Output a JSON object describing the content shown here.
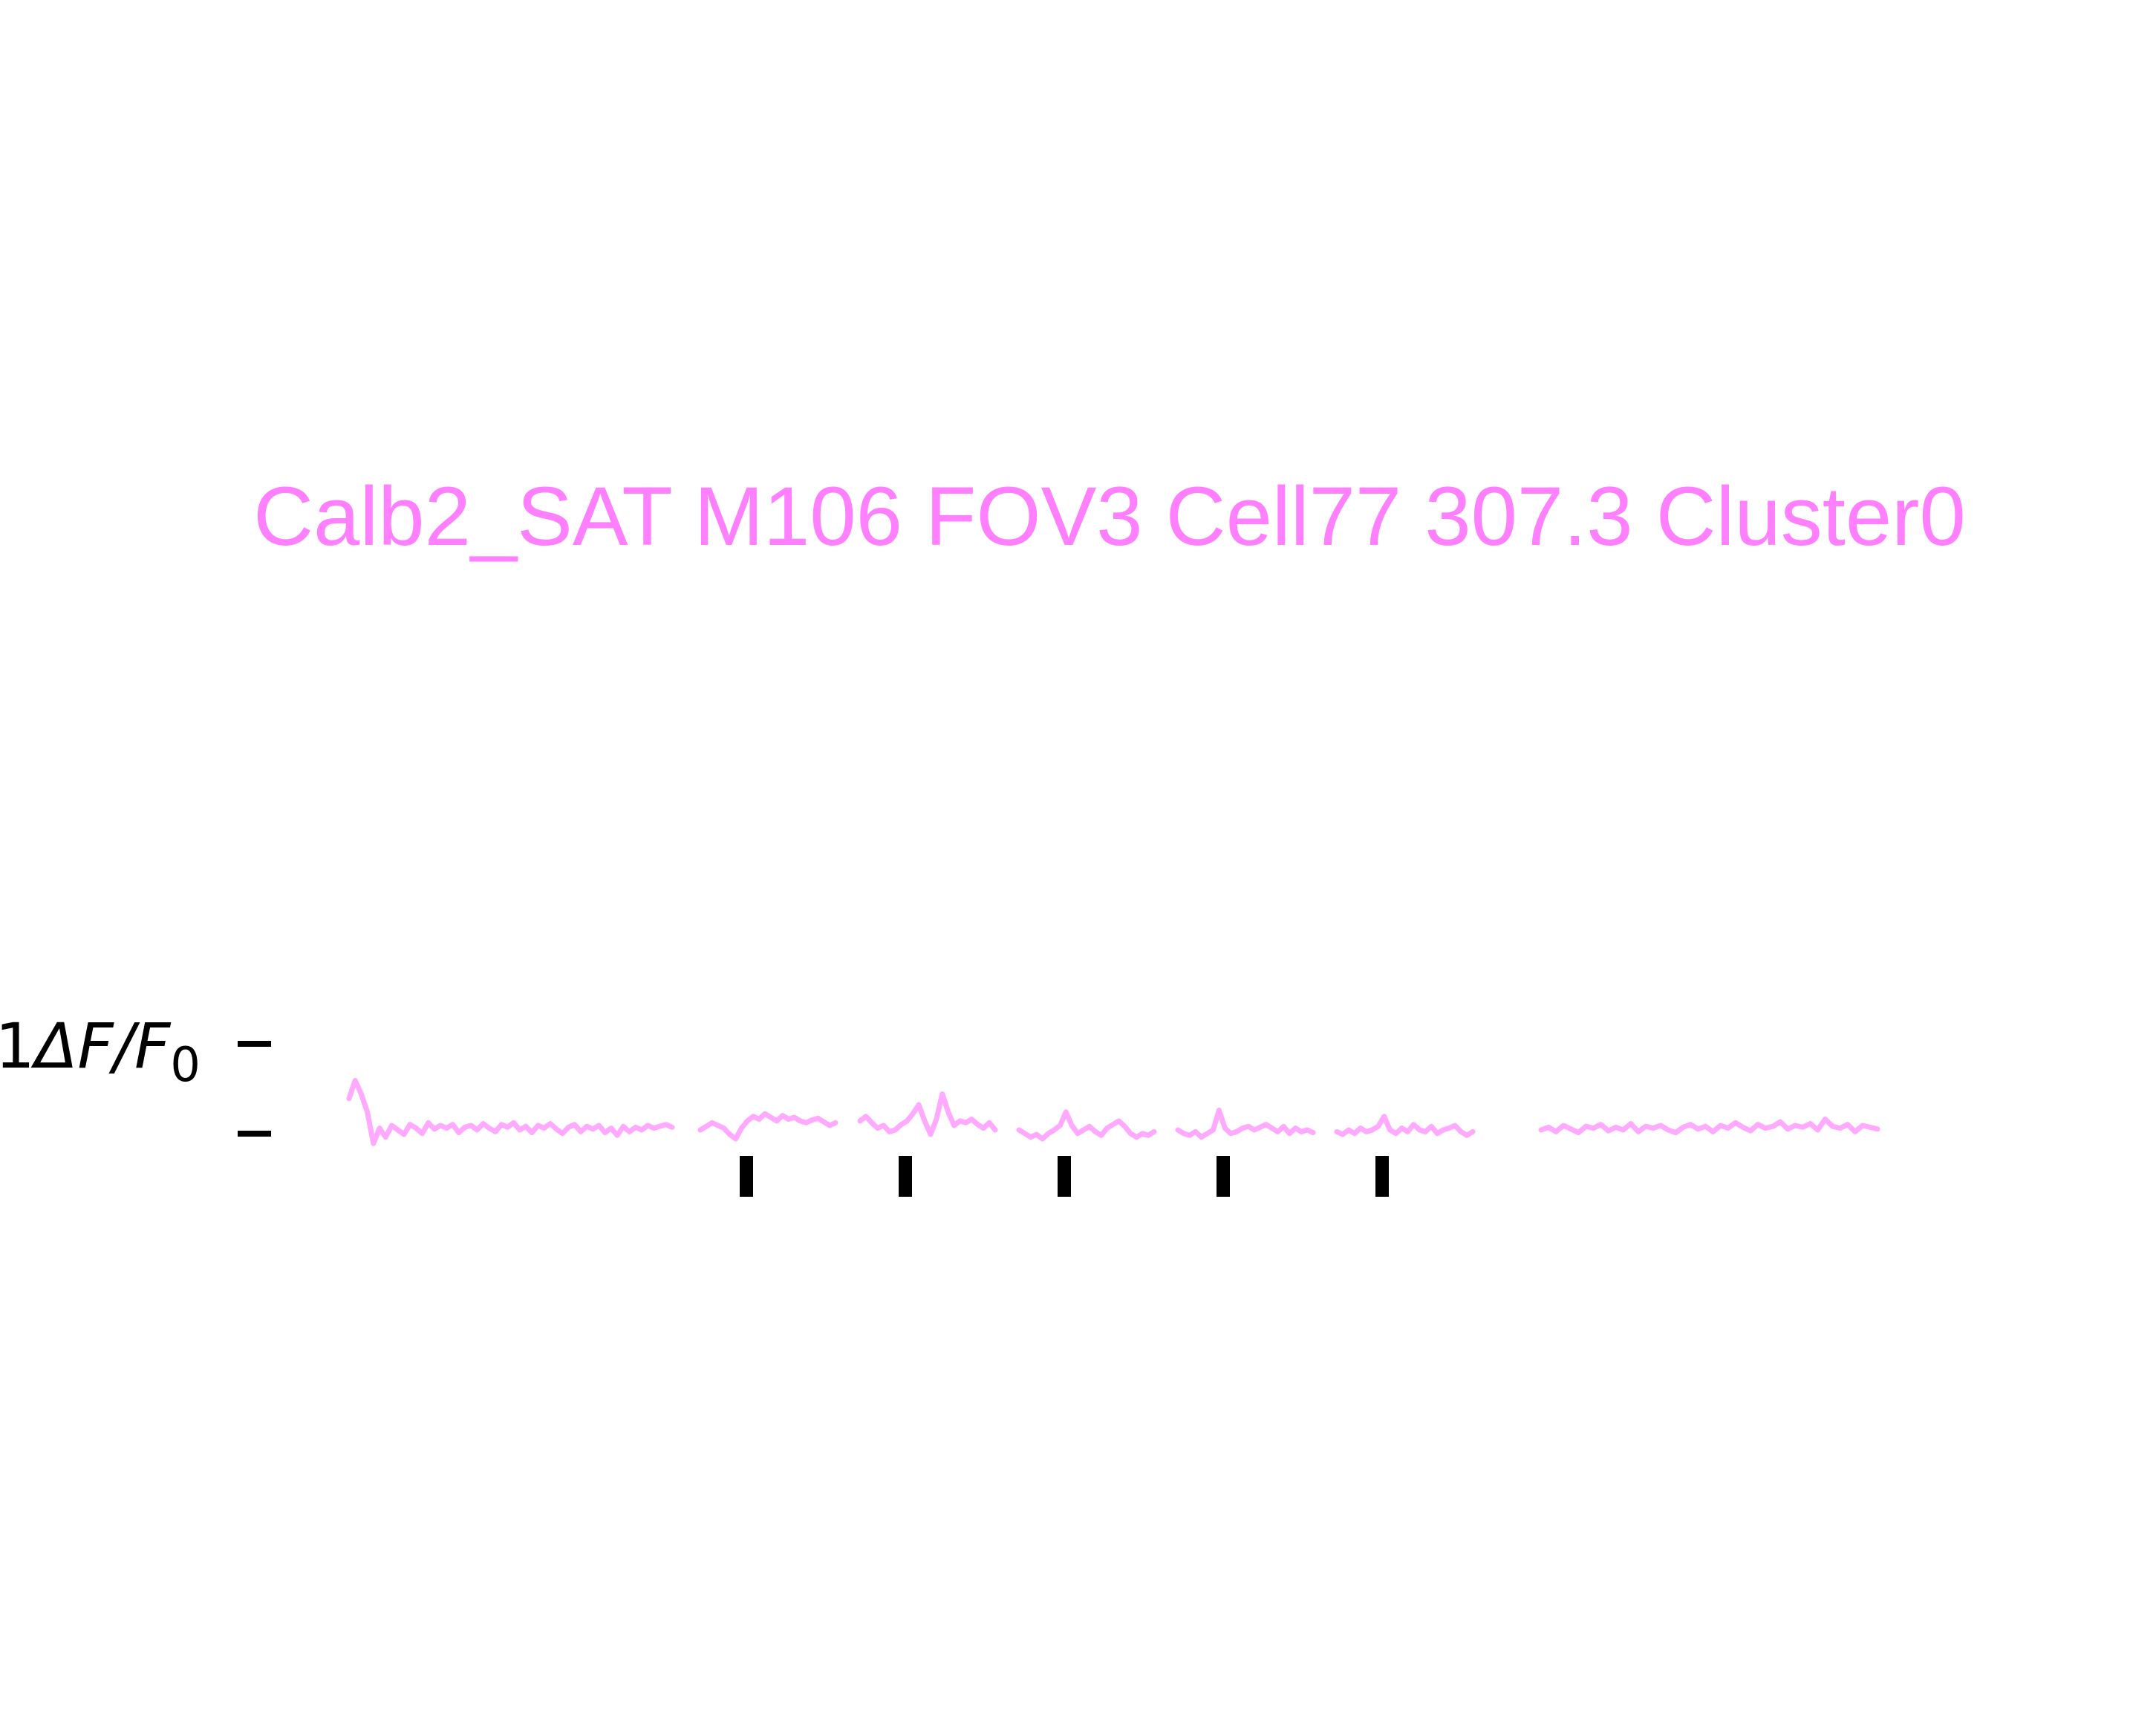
{
  "colors": {
    "title": "#ff80ff",
    "trace": "#ffaaff",
    "scale_bar": "#000000",
    "stim_marker": "#000000"
  },
  "chart_data": {
    "type": "line",
    "title": "Calb2_SAT M106 FOV3 Cell77 307.3 Cluster0",
    "xlabel": "",
    "ylabel": "",
    "axes_visible": false,
    "grid": false,
    "scale_bar": {
      "label_prefix": "1",
      "label_main": "ΔF/F",
      "label_subscript": "0",
      "value": 1
    },
    "stimulus_markers": 5,
    "series": [
      {
        "segment": 1,
        "values": [
          0.35,
          0.55,
          0.4,
          0.2,
          -0.15,
          0.02,
          -0.08,
          0.05,
          0.0,
          -0.05,
          0.06,
          0.02,
          -0.04,
          0.08,
          0.01,
          0.05,
          0.02,
          0.06,
          -0.03,
          0.03,
          0.05,
          0.0,
          0.07,
          0.02,
          -0.02,
          0.06,
          0.03,
          0.08,
          0.0,
          0.04,
          -0.03,
          0.05,
          0.02,
          0.07,
          0.01,
          -0.04,
          0.03,
          0.06,
          -0.02,
          0.04,
          0.01,
          0.05,
          -0.03,
          0.02,
          -0.06,
          0.04,
          -0.02,
          0.03,
          0.0,
          0.05,
          0.02,
          0.04,
          0.06,
          0.03
        ]
      },
      {
        "segment": 2,
        "values": [
          0.0,
          0.04,
          0.08,
          0.05,
          0.02,
          -0.05,
          -0.1,
          0.02,
          0.1,
          0.15,
          0.12,
          0.18,
          0.14,
          0.1,
          0.16,
          0.12,
          0.14,
          0.1,
          0.08,
          0.11,
          0.13,
          0.09,
          0.05,
          0.08
        ]
      },
      {
        "segment": 3,
        "values": [
          0.1,
          0.15,
          0.08,
          0.02,
          0.05,
          -0.02,
          0.0,
          0.06,
          0.1,
          0.18,
          0.28,
          0.1,
          -0.05,
          0.12,
          0.4,
          0.2,
          0.05,
          0.1,
          0.08,
          0.12,
          0.06,
          0.02,
          0.08,
          0.0
        ]
      },
      {
        "segment": 4,
        "values": [
          0.0,
          -0.04,
          -0.08,
          -0.05,
          -0.1,
          -0.04,
          0.0,
          0.05,
          0.2,
          0.05,
          -0.04,
          0.0,
          0.04,
          -0.02,
          -0.06,
          0.02,
          0.06,
          0.1,
          0.04,
          -0.04,
          -0.08,
          -0.04,
          -0.06,
          -0.02
        ]
      },
      {
        "segment": 5,
        "values": [
          0.0,
          -0.04,
          -0.06,
          -0.02,
          -0.08,
          -0.04,
          0.0,
          0.22,
          0.02,
          -0.04,
          -0.02,
          0.02,
          0.04,
          0.0,
          0.03,
          0.06,
          0.02,
          -0.02,
          0.04,
          -0.04,
          0.02,
          -0.02,
          0.0,
          -0.03
        ]
      },
      {
        "segment": 6,
        "values": [
          -0.02,
          -0.05,
          0.0,
          -0.04,
          0.02,
          -0.02,
          0.0,
          0.04,
          0.15,
          0.0,
          -0.04,
          0.02,
          -0.02,
          0.06,
          0.0,
          -0.02,
          0.04,
          -0.04,
          0.0,
          0.02,
          0.05,
          -0.02,
          -0.06,
          -0.02
        ]
      },
      {
        "segment": 7,
        "values": [
          0.0,
          0.03,
          -0.02,
          0.05,
          0.01,
          -0.03,
          0.04,
          0.02,
          0.06,
          -0.01,
          0.03,
          0.0,
          0.07,
          -0.02,
          0.04,
          0.02,
          0.05,
          0.0,
          -0.03,
          0.03,
          0.06,
          0.01,
          0.04,
          -0.02,
          0.05,
          0.02,
          0.08,
          0.03,
          -0.01,
          0.06,
          0.02,
          0.04,
          0.09,
          0.01,
          0.05,
          0.03,
          0.07,
          0.0,
          0.12,
          0.04,
          0.02,
          0.06,
          -0.02,
          0.05,
          0.03,
          0.01
        ]
      }
    ]
  }
}
